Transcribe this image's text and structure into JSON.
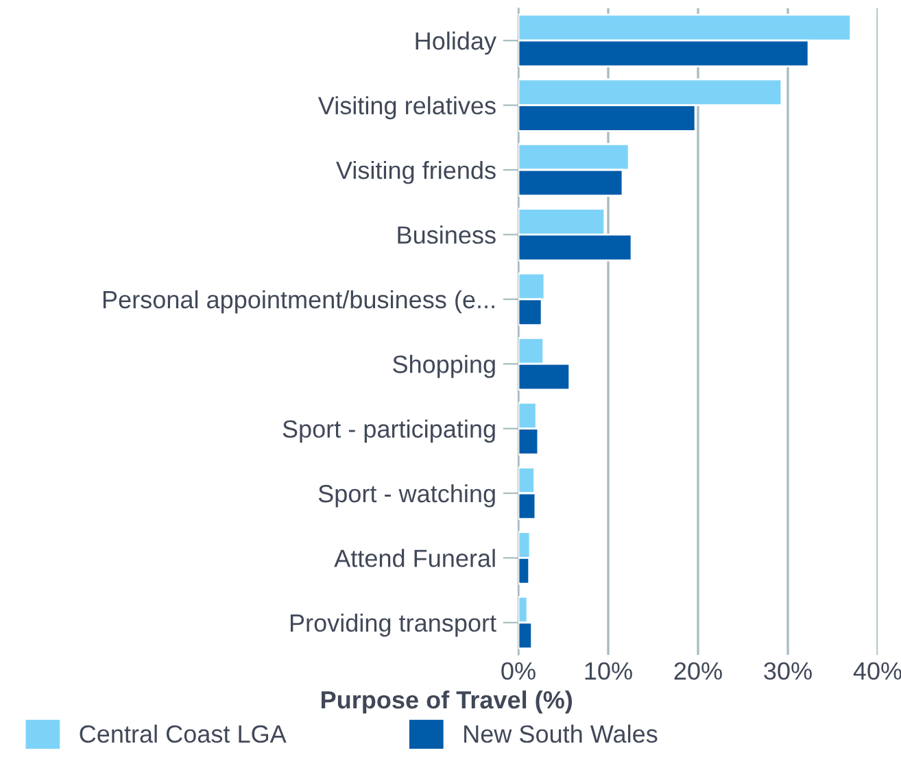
{
  "chart_data": {
    "type": "bar",
    "orientation": "horizontal",
    "xlabel": "Purpose of Travel (%)",
    "categories": [
      "Holiday",
      "Visiting relatives",
      "Visiting friends",
      "Business",
      "Personal appointment/business (e...",
      "Shopping",
      "Sport - participating",
      "Sport - watching",
      "Attend Funeral",
      "Providing transport"
    ],
    "series": [
      {
        "name": "Central Coast LGA",
        "color": "#7dd3f7",
        "values": [
          37.0,
          29.3,
          12.3,
          9.6,
          2.9,
          2.8,
          2.0,
          1.8,
          1.3,
          1.0
        ]
      },
      {
        "name": "New South Wales",
        "color": "#005ba9",
        "values": [
          32.3,
          19.7,
          11.6,
          12.6,
          2.6,
          5.7,
          2.2,
          1.9,
          1.2,
          1.5
        ]
      }
    ],
    "xlim": [
      0,
      40
    ],
    "xticks": [
      {
        "value": 0,
        "label": "0%"
      },
      {
        "value": 10,
        "label": "10%"
      },
      {
        "value": 20,
        "label": "20%"
      },
      {
        "value": 30,
        "label": "30%"
      },
      {
        "value": 40,
        "label": "40%"
      }
    ],
    "grid": "x",
    "legend": "bottom"
  }
}
